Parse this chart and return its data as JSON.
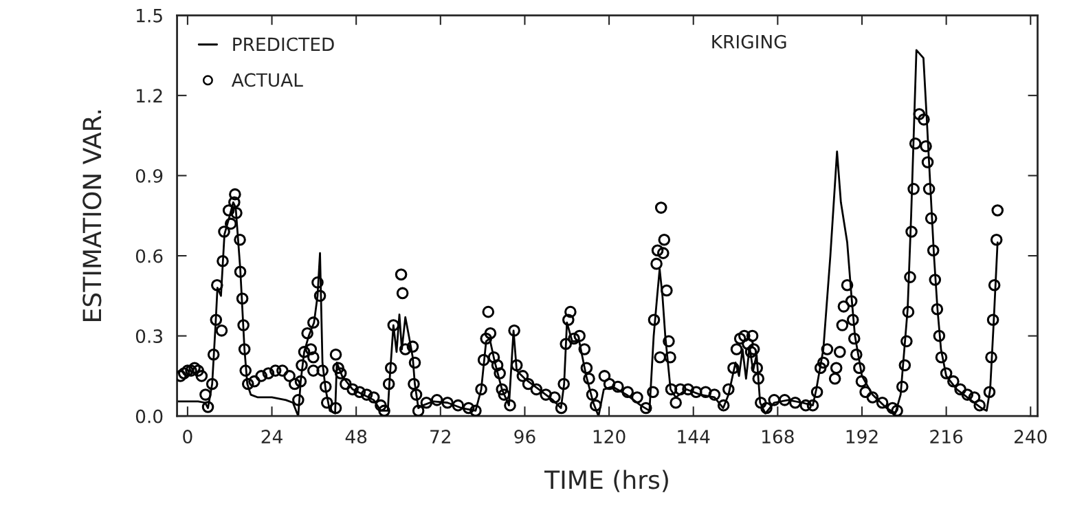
{
  "chart_data": {
    "type": "line",
    "annotations": [
      "KRIGING"
    ],
    "xlabel": "TIME (hrs)",
    "ylabel": "ESTIMATION VAR.",
    "xlim": [
      -3,
      242
    ],
    "xticks": [
      0,
      24,
      48,
      72,
      96,
      120,
      144,
      168,
      192,
      216,
      240
    ],
    "ylim": [
      0,
      1.5
    ],
    "yticks": [
      {
        "value": 0,
        "label": "0.0"
      },
      {
        "value": 0.3,
        "label": "0.3"
      },
      {
        "value": 0.6,
        "label": "0.6"
      },
      {
        "value": 0.9,
        "label": "0.9"
      },
      {
        "value": 1.2,
        "label": "1.2"
      },
      {
        "value": 1.5,
        "label": "1.5"
      }
    ],
    "grid": false,
    "legend": "top left",
    "series": [
      {
        "name": "PREDICTED",
        "marker": "none",
        "line_style": "solid",
        "color": "#000000",
        "x": [
          -3,
          0,
          3,
          5,
          5.8,
          7,
          8,
          8.5,
          9.5,
          10.5,
          12,
          13,
          13.7,
          15,
          16.2,
          17,
          18,
          20,
          24,
          28,
          30,
          31.5,
          32.2,
          33.2,
          34.5,
          36,
          37,
          37.7,
          38.4,
          39.3,
          40.5,
          42,
          42.5,
          44,
          47,
          50,
          53,
          55,
          57,
          57.5,
          58.6,
          59.5,
          60.3,
          61,
          62,
          63,
          64.1,
          64.7,
          65.7,
          67,
          70,
          74,
          78,
          82,
          83.6,
          85,
          86,
          87.5,
          89.5,
          91.5,
          92.8,
          93.7,
          96,
          100,
          104,
          106.3,
          107.2,
          108,
          109.5,
          111.5,
          113.5,
          115.5,
          117,
          118.5,
          121,
          125,
          129,
          131.5,
          132.7,
          133.7,
          134.4,
          135.2,
          136,
          137.5,
          139,
          142,
          146,
          150,
          152.5,
          154,
          156,
          157,
          158,
          159,
          160,
          161,
          162,
          163,
          164.5,
          167,
          171,
          175,
          178,
          179,
          181,
          183,
          184.9,
          186,
          187.8,
          189,
          190,
          192,
          195,
          199,
          201.5,
          203,
          205,
          206,
          207.5,
          209.5,
          210.5,
          211.5,
          212.5,
          213.5,
          214.5,
          216,
          219,
          223,
          226,
          227.5,
          228.5,
          229.5,
          230.6
        ],
        "values": [
          0.055,
          0.055,
          0.055,
          0.05,
          0.03,
          0.12,
          0.35,
          0.48,
          0.45,
          0.68,
          0.75,
          0.8,
          0.78,
          0.55,
          0.25,
          0.12,
          0.08,
          0.07,
          0.07,
          0.06,
          0.05,
          0.0,
          0.13,
          0.24,
          0.3,
          0.35,
          0.45,
          0.61,
          0.2,
          0.1,
          0.02,
          0.01,
          0.2,
          0.15,
          0.1,
          0.08,
          0.06,
          0.02,
          0.02,
          0.13,
          0.34,
          0.24,
          0.38,
          0.25,
          0.37,
          0.3,
          0.22,
          0.12,
          0.03,
          0.04,
          0.055,
          0.05,
          0.03,
          0.02,
          0.1,
          0.28,
          0.29,
          0.2,
          0.1,
          0.04,
          0.32,
          0.17,
          0.14,
          0.1,
          0.06,
          0.03,
          0.12,
          0.35,
          0.28,
          0.28,
          0.15,
          0.05,
          0.0,
          0.1,
          0.11,
          0.08,
          0.04,
          0.02,
          0.3,
          0.45,
          0.55,
          0.45,
          0.3,
          0.1,
          0.07,
          0.1,
          0.08,
          0.07,
          0.03,
          0.08,
          0.2,
          0.15,
          0.25,
          0.14,
          0.26,
          0.17,
          0.23,
          0.05,
          0.01,
          0.05,
          0.06,
          0.05,
          0.04,
          0.1,
          0.25,
          0.6,
          0.99,
          0.8,
          0.65,
          0.45,
          0.3,
          0.15,
          0.08,
          0.03,
          0.01,
          0.08,
          0.4,
          0.75,
          1.37,
          1.34,
          1.1,
          0.85,
          0.6,
          0.4,
          0.25,
          0.15,
          0.1,
          0.06,
          0.03,
          0.02,
          0.1,
          0.35,
          0.65
        ]
      },
      {
        "name": "ACTUAL",
        "type": "scatter",
        "marker": "circle",
        "color": "#000000",
        "x": [
          -2,
          -1,
          0,
          1,
          2,
          3,
          4,
          5.1,
          5.8,
          7,
          7.4,
          8.1,
          8.4,
          9.7,
          10,
          10.4,
          11.7,
          12.3,
          13.3,
          13.5,
          13.9,
          14.9,
          15,
          15.6,
          15.9,
          16.2,
          16.5,
          17.2,
          19,
          21,
          23,
          25,
          27,
          29,
          30.5,
          31.5,
          32.2,
          32.5,
          33.2,
          34.1,
          35.1,
          35.8,
          35.8,
          35.8,
          37,
          37.7,
          38.4,
          39.3,
          39.7,
          42.2,
          42.2,
          42.9,
          43.6,
          45,
          47,
          49,
          51,
          53,
          55,
          56,
          57.3,
          57.9,
          58.6,
          60.8,
          61.2,
          62,
          64.1,
          64.4,
          64.7,
          65.1,
          65.7,
          68,
          71,
          74,
          77,
          80,
          82,
          83.6,
          84.3,
          85,
          85.6,
          86.2,
          87.2,
          88.2,
          88.9,
          89.5,
          90.1,
          91.8,
          93,
          93.7,
          95.4,
          97,
          99.3,
          102,
          104.5,
          106.4,
          107.1,
          107.7,
          108.4,
          109,
          110,
          111.6,
          113,
          113.6,
          114.3,
          115.2,
          116.2,
          118.7,
          120.1,
          122.5,
          125.3,
          128,
          130.5,
          132.5,
          132.8,
          133.5,
          133.8,
          134.5,
          134.8,
          135.4,
          135.7,
          136.4,
          137,
          137.4,
          137.7,
          139,
          140.3,
          142.5,
          144.8,
          147.5,
          150,
          152.6,
          154,
          155.4,
          156.3,
          157.3,
          158.5,
          159.5,
          160.4,
          160.8,
          161.2,
          162.1,
          162.5,
          163.2,
          164.8,
          167,
          170,
          173,
          176,
          178,
          179.2,
          180.2,
          181,
          182.1,
          184.3,
          184.7,
          185.7,
          186.4,
          186.8,
          187.8,
          189,
          189.4,
          189.8,
          190.4,
          191.2,
          191.9,
          193,
          195,
          197.8,
          200.7,
          202,
          203.5,
          204.2,
          204.7,
          205.2,
          205.7,
          206.1,
          206.7,
          207.2,
          208.3,
          209.6,
          210.2,
          210.7,
          211.1,
          211.7,
          212.3,
          212.8,
          213.4,
          214,
          214.6,
          216,
          218,
          220,
          222,
          224,
          225.5,
          228.3,
          228.8,
          229.3,
          229.7,
          230.3,
          230.6
        ],
        "values": [
          0.15,
          0.16,
          0.17,
          0.17,
          0.18,
          0.17,
          0.15,
          0.08,
          0.034,
          0.12,
          0.23,
          0.36,
          0.49,
          0.32,
          0.58,
          0.69,
          0.77,
          0.72,
          0.8,
          0.83,
          0.76,
          0.66,
          0.54,
          0.44,
          0.34,
          0.25,
          0.17,
          0.12,
          0.13,
          0.15,
          0.16,
          0.17,
          0.17,
          0.15,
          0.12,
          0.06,
          0.13,
          0.19,
          0.24,
          0.31,
          0.25,
          0.35,
          0.22,
          0.17,
          0.5,
          0.45,
          0.17,
          0.11,
          0.05,
          0.03,
          0.23,
          0.18,
          0.16,
          0.12,
          0.1,
          0.09,
          0.08,
          0.07,
          0.04,
          0.02,
          0.12,
          0.18,
          0.34,
          0.53,
          0.46,
          0.25,
          0.26,
          0.12,
          0.2,
          0.08,
          0.02,
          0.05,
          0.06,
          0.05,
          0.04,
          0.03,
          0.02,
          0.1,
          0.21,
          0.29,
          0.39,
          0.31,
          0.22,
          0.19,
          0.16,
          0.1,
          0.08,
          0.04,
          0.32,
          0.19,
          0.15,
          0.12,
          0.1,
          0.08,
          0.07,
          0.03,
          0.12,
          0.27,
          0.36,
          0.39,
          0.29,
          0.3,
          0.25,
          0.18,
          0.14,
          0.08,
          0.04,
          0.15,
          0.12,
          0.11,
          0.09,
          0.07,
          0.03,
          0.09,
          0.36,
          0.57,
          0.62,
          0.22,
          0.78,
          0.61,
          0.66,
          0.47,
          0.28,
          0.22,
          0.1,
          0.05,
          0.1,
          0.1,
          0.09,
          0.09,
          0.08,
          0.04,
          0.1,
          0.18,
          0.25,
          0.29,
          0.3,
          0.27,
          0.24,
          0.3,
          0.25,
          0.18,
          0.14,
          0.05,
          0.03,
          0.06,
          0.06,
          0.05,
          0.04,
          0.04,
          0.09,
          0.18,
          0.2,
          0.25,
          0.14,
          0.18,
          0.24,
          0.34,
          0.41,
          0.49,
          0.43,
          0.36,
          0.29,
          0.23,
          0.18,
          0.13,
          0.09,
          0.07,
          0.05,
          0.03,
          0.02,
          0.11,
          0.19,
          0.28,
          0.39,
          0.52,
          0.69,
          0.85,
          1.02,
          1.13,
          1.11,
          1.01,
          0.95,
          0.85,
          0.74,
          0.62,
          0.51,
          0.4,
          0.3,
          0.22,
          0.16,
          0.13,
          0.1,
          0.08,
          0.07,
          0.04,
          0.09,
          0.22,
          0.36,
          0.49,
          0.66,
          0.77
        ]
      }
    ]
  }
}
